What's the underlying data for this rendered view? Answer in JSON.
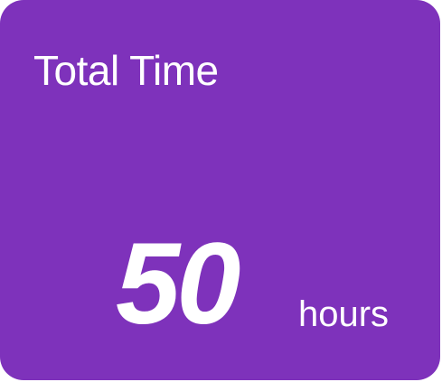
{
  "card": {
    "title": "Total Time",
    "value": "50",
    "unit": "hours",
    "background_color": "#7e32bb",
    "text_color": "#ffffff"
  }
}
